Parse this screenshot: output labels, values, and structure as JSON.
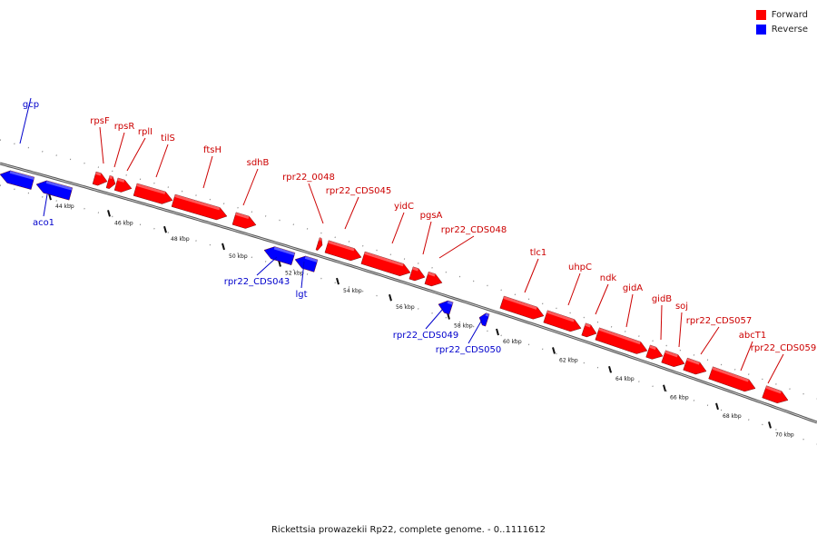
{
  "caption": "Rickettsia prowazekii Rp22, complete genome. - 0..1111612",
  "legend": [
    {
      "label": "Forward",
      "color": "#ff0000"
    },
    {
      "label": "Reverse",
      "color": "#0000ff"
    }
  ],
  "colors": {
    "forward": "#ff0000",
    "reverse": "#0000ff",
    "label_forward": "#cc0000",
    "label_reverse": "#0000cc"
  },
  "scale_ticks": [
    "44 kbp",
    "46 kbp",
    "48 kbp",
    "50 kbp",
    "52 kbp",
    "54 kbp",
    "56 kbp",
    "58 kbp",
    "60 kbp",
    "62 kbp",
    "64 kbp",
    "66 kbp",
    "68 kbp",
    "70 kbp"
  ],
  "features": [
    {
      "name": "aco1",
      "strand": "reverse"
    },
    {
      "name": "gcp",
      "strand": "reverse"
    },
    {
      "name": "rpsF",
      "strand": "forward"
    },
    {
      "name": "rpsR",
      "strand": "forward"
    },
    {
      "name": "rplI",
      "strand": "forward"
    },
    {
      "name": "tilS",
      "strand": "forward"
    },
    {
      "name": "ftsH",
      "strand": "forward"
    },
    {
      "name": "sdhB",
      "strand": "forward"
    },
    {
      "name": "rpr22_CDS043",
      "strand": "reverse"
    },
    {
      "name": "lgt",
      "strand": "reverse"
    },
    {
      "name": "rpr22_0048",
      "strand": "forward"
    },
    {
      "name": "rpr22_CDS045",
      "strand": "forward"
    },
    {
      "name": "yidC",
      "strand": "forward"
    },
    {
      "name": "pgsA",
      "strand": "forward"
    },
    {
      "name": "rpr22_CDS048",
      "strand": "forward"
    },
    {
      "name": "rpr22_CDS049",
      "strand": "reverse"
    },
    {
      "name": "rpr22_CDS050",
      "strand": "reverse"
    },
    {
      "name": "tlc1",
      "strand": "forward"
    },
    {
      "name": "uhpC",
      "strand": "forward"
    },
    {
      "name": "ndk",
      "strand": "forward"
    },
    {
      "name": "gidA",
      "strand": "forward"
    },
    {
      "name": "gidB",
      "strand": "forward"
    },
    {
      "name": "soj",
      "strand": "forward"
    },
    {
      "name": "rpr22_CDS057",
      "strand": "forward"
    },
    {
      "name": "abcT1",
      "strand": "forward"
    },
    {
      "name": "rpr22_CDS059",
      "strand": "forward"
    }
  ]
}
